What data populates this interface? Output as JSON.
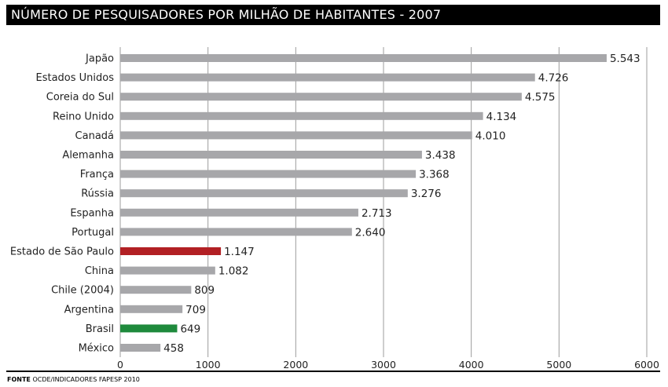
{
  "chart_data": {
    "type": "bar",
    "orientation": "horizontal",
    "title": "NÚMERO DE PESQUISADORES POR MILHÃO DE HABITANTES - 2007",
    "categories": [
      "Japão",
      "Estados Unidos",
      "Coreia do Sul",
      "Reino Unido",
      "Canadá",
      "Alemanha",
      "França",
      "Rússia",
      "Espanha",
      "Portugal",
      "Estado de São Paulo",
      "China",
      "Chile (2004)",
      "Argentina",
      "Brasil",
      "México"
    ],
    "values": [
      5543,
      4726,
      4575,
      4134,
      4010,
      3438,
      3368,
      3276,
      2713,
      2640,
      1147,
      1082,
      809,
      709,
      649,
      458
    ],
    "value_labels": [
      "5.543",
      "4.726",
      "4.575",
      "4.134",
      "4.010",
      "3.438",
      "3.368",
      "3.276",
      "2.713",
      "2.640",
      "1.147",
      "1.082",
      "809",
      "709",
      "649",
      "458"
    ],
    "bar_colors": [
      "#a7a7aa",
      "#a7a7aa",
      "#a7a7aa",
      "#a7a7aa",
      "#a7a7aa",
      "#a7a7aa",
      "#a7a7aa",
      "#a7a7aa",
      "#a7a7aa",
      "#a7a7aa",
      "#b22024",
      "#a7a7aa",
      "#a7a7aa",
      "#a7a7aa",
      "#1e8a3c",
      "#a7a7aa"
    ],
    "xticks": [
      "0",
      "1000",
      "2000",
      "3000",
      "4000",
      "5000",
      "6000"
    ],
    "xlim": [
      0,
      6000
    ],
    "grid": true,
    "xlabel": "",
    "ylabel": ""
  },
  "source": {
    "label": "FONTE",
    "text": "OCDE/INDICADORES FAPESP 2010"
  }
}
